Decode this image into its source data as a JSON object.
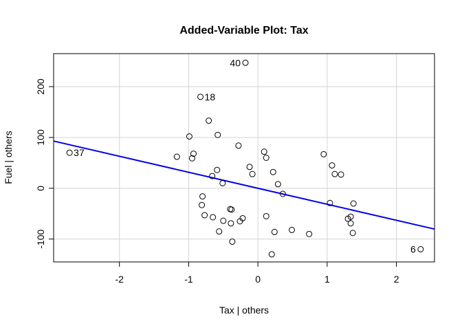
{
  "chart_data": {
    "type": "scatter",
    "title": "Added-Variable Plot: Tax",
    "xlabel": "Tax | others",
    "ylabel": "Fuel  | others",
    "xlim": [
      -2.95,
      2.55
    ],
    "ylim": [
      -145,
      265
    ],
    "xticks": [
      -2,
      -1,
      0,
      1,
      2
    ],
    "yticks": [
      -100,
      0,
      100,
      200
    ],
    "xtick_labels": [
      "-2",
      "-1",
      "0",
      "1",
      "2"
    ],
    "ytick_labels": [
      "-100",
      "0",
      "100",
      "200"
    ],
    "grid": true,
    "line": {
      "color": "#0000ee",
      "intercept": 0,
      "slope": -31.5
    },
    "points": [
      {
        "x": -2.72,
        "y": 70,
        "label": "37"
      },
      {
        "x": -0.18,
        "y": 247,
        "label": "40"
      },
      {
        "x": -0.83,
        "y": 180,
        "label": "18"
      },
      {
        "x": 2.35,
        "y": -120,
        "label": "6"
      },
      {
        "x": -0.71,
        "y": 133
      },
      {
        "x": -0.58,
        "y": 105
      },
      {
        "x": -0.99,
        "y": 102
      },
      {
        "x": -0.28,
        "y": 84
      },
      {
        "x": -1.17,
        "y": 62
      },
      {
        "x": -0.93,
        "y": 68
      },
      {
        "x": -0.95,
        "y": 59
      },
      {
        "x": 0.09,
        "y": 72
      },
      {
        "x": 0.12,
        "y": 60
      },
      {
        "x": -0.12,
        "y": 42
      },
      {
        "x": -0.08,
        "y": 28
      },
      {
        "x": -0.59,
        "y": 36
      },
      {
        "x": -0.66,
        "y": 24
      },
      {
        "x": -0.51,
        "y": 10
      },
      {
        "x": 0.22,
        "y": 32
      },
      {
        "x": 0.29,
        "y": 8
      },
      {
        "x": 0.36,
        "y": -11
      },
      {
        "x": 0.95,
        "y": 67
      },
      {
        "x": 1.07,
        "y": 45
      },
      {
        "x": 1.11,
        "y": 28
      },
      {
        "x": 1.2,
        "y": 27
      },
      {
        "x": 1.04,
        "y": -29
      },
      {
        "x": 1.38,
        "y": -30
      },
      {
        "x": -0.8,
        "y": -16
      },
      {
        "x": -0.81,
        "y": -33
      },
      {
        "x": -0.77,
        "y": -53
      },
      {
        "x": -0.65,
        "y": -57
      },
      {
        "x": -0.4,
        "y": -41
      },
      {
        "x": -0.38,
        "y": -42
      },
      {
        "x": -0.5,
        "y": -64
      },
      {
        "x": -0.39,
        "y": -69
      },
      {
        "x": -0.22,
        "y": -59
      },
      {
        "x": -0.26,
        "y": -65
      },
      {
        "x": -0.56,
        "y": -85
      },
      {
        "x": -0.37,
        "y": -105
      },
      {
        "x": 0.12,
        "y": -55
      },
      {
        "x": 0.24,
        "y": -86
      },
      {
        "x": 0.49,
        "y": -82
      },
      {
        "x": 0.74,
        "y": -90
      },
      {
        "x": 1.3,
        "y": -60
      },
      {
        "x": 1.34,
        "y": -56
      },
      {
        "x": 1.34,
        "y": -69
      },
      {
        "x": 1.37,
        "y": -88
      },
      {
        "x": 0.2,
        "y": -130
      }
    ]
  }
}
